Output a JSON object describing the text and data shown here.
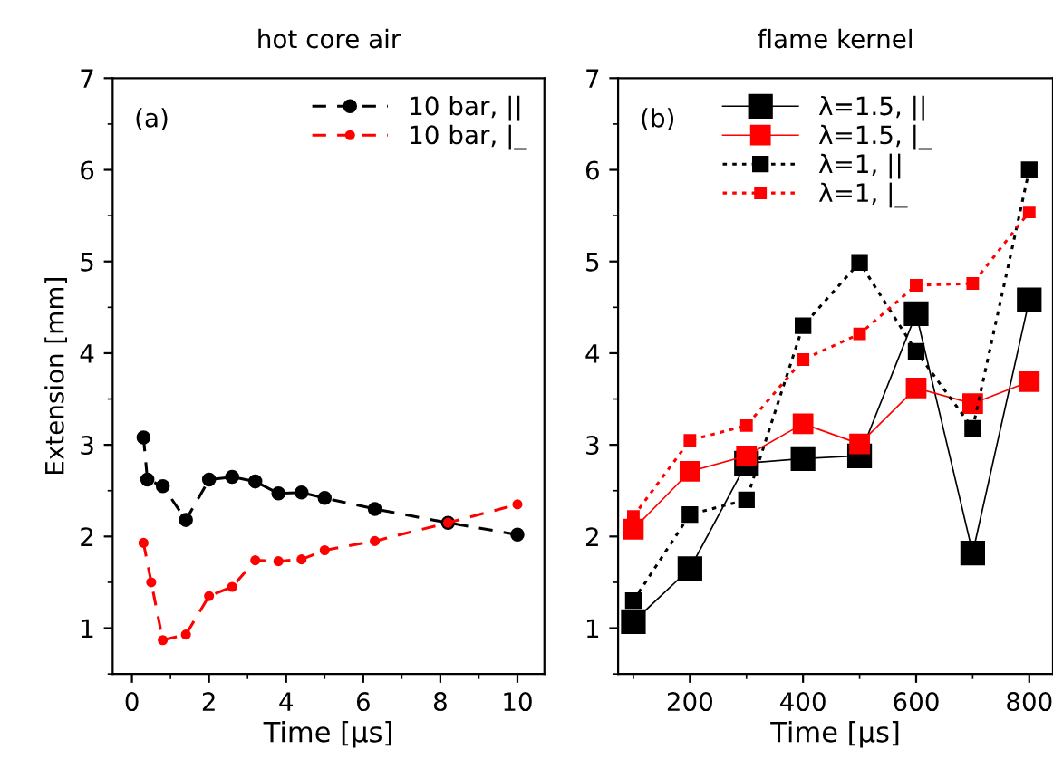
{
  "chart_data": [
    {
      "type": "line",
      "title": "hot core air",
      "xlabel": "Time [µs]",
      "ylabel": "Extension [mm]",
      "annotations": [
        "(a)"
      ],
      "xlim": [
        -0.5,
        10.7
      ],
      "xticks": [
        0,
        2,
        4,
        6,
        8,
        10
      ],
      "ylim": [
        0.5,
        7
      ],
      "yticks": [
        1,
        2,
        3,
        4,
        5,
        6,
        7
      ],
      "legend": "top right",
      "marker": "circle",
      "line_style": "dashed",
      "grid": false,
      "series": [
        {
          "name": "10 bar, ||",
          "color": "#000000",
          "x": [
            0.3,
            0.4,
            0.8,
            1.4,
            2.0,
            2.6,
            3.2,
            3.8,
            4.4,
            5.0,
            6.3,
            8.2,
            10
          ],
          "values": [
            3.08,
            2.62,
            2.55,
            2.18,
            2.62,
            2.65,
            2.6,
            2.47,
            2.48,
            2.42,
            2.3,
            2.15,
            2.02
          ]
        },
        {
          "name": "10 bar, |_",
          "color": "#ff0000",
          "x": [
            0.3,
            0.5,
            0.8,
            1.4,
            2.0,
            2.6,
            3.2,
            3.8,
            4.4,
            5.0,
            6.3,
            8.2,
            10
          ],
          "values": [
            1.93,
            1.5,
            0.87,
            0.93,
            1.35,
            1.45,
            1.74,
            1.73,
            1.75,
            1.85,
            1.95,
            2.15,
            2.35
          ]
        }
      ]
    },
    {
      "type": "line",
      "title": "flame kernel",
      "xlabel": "Time [µs]",
      "annotations": [
        "(b)"
      ],
      "xlim": [
        73,
        842
      ],
      "xticks": [
        200,
        400,
        600,
        800
      ],
      "ylim": [
        0.5,
        7
      ],
      "yticks": [
        1,
        2,
        3,
        4,
        5,
        6,
        7
      ],
      "legend": "top",
      "marker": "square",
      "grid": false,
      "x": [
        100,
        200,
        300,
        400,
        500,
        600,
        700,
        800
      ],
      "series": [
        {
          "name": "λ=1.5, ||",
          "color": "#000000",
          "line_style": "solid",
          "values": [
            1.07,
            1.65,
            2.8,
            2.85,
            2.88,
            4.43,
            1.82,
            4.58
          ]
        },
        {
          "name": "λ=1.5, |_",
          "color": "#ff0000",
          "line_style": "solid",
          "values": [
            2.08,
            2.71,
            2.88,
            3.23,
            3.01,
            3.62,
            3.45,
            3.69
          ]
        },
        {
          "name": "λ=1, ||",
          "color": "#000000",
          "line_style": "dotted",
          "values": [
            1.3,
            2.24,
            2.4,
            4.3,
            4.99,
            4.02,
            3.18,
            6.0
          ]
        },
        {
          "name": "λ=1, |_",
          "color": "#ff0000",
          "line_style": "dotted",
          "values": [
            2.22,
            3.05,
            3.21,
            3.93,
            4.21,
            4.74,
            4.76,
            5.54
          ]
        }
      ]
    }
  ]
}
